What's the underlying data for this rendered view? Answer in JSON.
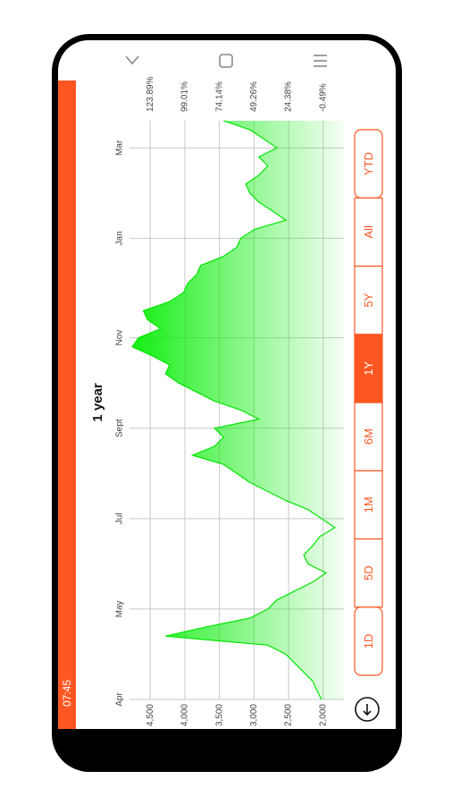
{
  "ui": {
    "status_time": "07:45",
    "buttons": [
      "1D",
      "5D",
      "1M",
      "6M",
      "1Y",
      "5Y",
      "All",
      "YTD"
    ],
    "selected_button": "1Y"
  },
  "chart_data": {
    "type": "area",
    "title": "1 year",
    "color": "#00e600",
    "values": [
      2025,
      2090,
      2150,
      2280,
      2410,
      2540,
      2800,
      4280,
      3700,
      3060,
      2800,
      2670,
      2410,
      2150,
      1960,
      2220,
      2280,
      2150,
      2050,
      1830,
      2025,
      2220,
      2540,
      2800,
      3060,
      3250,
      3440,
      3890,
      3570,
      3440,
      3570,
      2930,
      3190,
      3570,
      3830,
      4090,
      4280,
      4220,
      4470,
      4760,
      4670,
      4350,
      4540,
      4600,
      4220,
      4020,
      3960,
      3830,
      3770,
      3440,
      3250,
      3190,
      2990,
      2540,
      2730,
      2930,
      3060,
      3120,
      2930,
      2800,
      2930,
      2670,
      2860,
      3060,
      3440
    ],
    "xlim": [
      0,
      64
    ],
    "xticks": [
      {
        "value": 0,
        "label": "Apr"
      },
      {
        "value": 10,
        "label": "May"
      },
      {
        "value": 20,
        "label": "Jul"
      },
      {
        "value": 30,
        "label": "Sept"
      },
      {
        "value": 40,
        "label": "Nov"
      },
      {
        "value": 51,
        "label": "Jan"
      },
      {
        "value": 61,
        "label": "Mar"
      }
    ],
    "ylim": [
      1700,
      4800
    ],
    "yticks": [
      {
        "value": 2000,
        "label": "2,000"
      },
      {
        "value": 2500,
        "label": "2,500"
      },
      {
        "value": 3000,
        "label": "3,000"
      },
      {
        "value": 3500,
        "label": "3,500"
      },
      {
        "value": 4000,
        "label": "4,000"
      },
      {
        "value": 4500,
        "label": "4,500"
      }
    ],
    "y2lim": [
      -15.42,
      138.82
    ],
    "y2ticks": [
      {
        "value": -0.49,
        "label": "-0.49%"
      },
      {
        "value": 24.38,
        "label": "24.38%"
      },
      {
        "value": 49.26,
        "label": "49.26%"
      },
      {
        "value": 74.14,
        "label": "74.14%"
      },
      {
        "value": 99.01,
        "label": "99.01%"
      },
      {
        "value": 123.89,
        "label": "123.89%"
      }
    ],
    "grid": true
  }
}
